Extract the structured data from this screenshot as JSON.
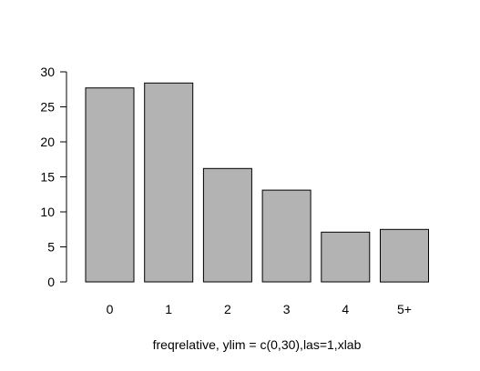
{
  "chart_data": {
    "type": "bar",
    "title": "",
    "xlabel": "freqrelative, ylim = c(0,30),las=1,xlab",
    "ylabel": "",
    "categories": [
      "0",
      "1",
      "2",
      "3",
      "4",
      "5+"
    ],
    "values": [
      27.7,
      28.4,
      16.2,
      13.1,
      7.1,
      7.5
    ],
    "ylim": [
      0,
      30
    ],
    "yticks": [
      0,
      5,
      10,
      15,
      20,
      25,
      30
    ],
    "ytick_labels": [
      "0",
      "5",
      "10",
      "15",
      "20",
      "25",
      "30"
    ],
    "grid": false,
    "legend": "none",
    "colors": {
      "bar_fill": "#b3b3b3",
      "bar_stroke": "#000000",
      "axis": "#000000"
    }
  }
}
